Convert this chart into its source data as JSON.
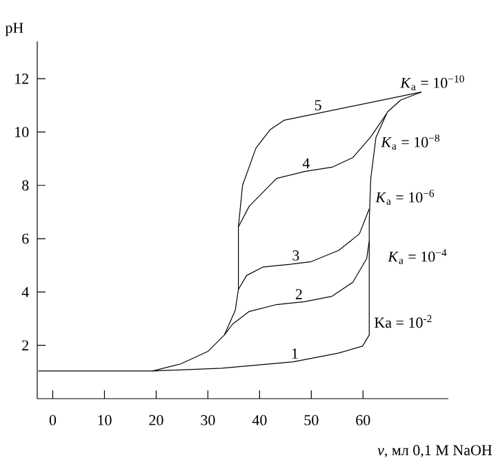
{
  "chart_data": {
    "type": "line",
    "xlabel": "*v*, мл 0,1 M NaOH",
    "ylabel": "pH",
    "xlim": [
      -3,
      76.5
    ],
    "ylim": [
      0,
      13.4
    ],
    "xticks": [
      0,
      10,
      20,
      30,
      40,
      50,
      60
    ],
    "yticks": [
      2,
      4,
      6,
      8,
      10,
      12
    ],
    "grid": false,
    "marker": "none",
    "line_style": "solid",
    "series": [
      {
        "name": "1",
        "color": "#000000",
        "x": [
          19.3,
          32.7,
          46.5,
          55.3,
          59.9,
          61.2,
          61.2,
          61.5,
          62.5,
          64.7,
          67.3,
          71.3
        ],
        "values": [
          1.04,
          1.14,
          1.38,
          1.71,
          1.97,
          2.39,
          6.7,
          8.26,
          9.8,
          10.75,
          11.2,
          11.5
        ]
      },
      {
        "name": "2",
        "color": "#000000",
        "x": [
          -2.8,
          19.3,
          24.7,
          30,
          33.2,
          34.8,
          38,
          43.3,
          48.7,
          54,
          58,
          60.7,
          61.2
        ],
        "values": [
          1.04,
          1.04,
          1.3,
          1.77,
          2.39,
          2.8,
          3.27,
          3.53,
          3.64,
          3.84,
          4.36,
          5.25,
          5.9
        ]
      },
      {
        "name": "3",
        "color": "#000000",
        "x": [
          33.2,
          35.3,
          35.9,
          37.5,
          40.7,
          46,
          50,
          55.3,
          59.3,
          61.2
        ],
        "values": [
          2.39,
          3.32,
          4.1,
          4.62,
          4.94,
          5.04,
          5.14,
          5.56,
          6.18,
          7.12
        ]
      },
      {
        "name": "4",
        "color": "#000000",
        "x": [
          35.9,
          35.9,
          38,
          43.3,
          48.7,
          54,
          58,
          61.5,
          64.6
        ],
        "values": [
          4.1,
          6.44,
          7.22,
          8.26,
          8.52,
          8.68,
          9.04,
          9.82,
          10.7
        ]
      },
      {
        "name": "5",
        "color": "#000000",
        "x": [
          35.9,
          36.7,
          39.3,
          42,
          44.7,
          71.3
        ],
        "values": [
          6.44,
          8.0,
          9.4,
          10.08,
          10.44,
          11.5
        ]
      }
    ],
    "annotations": [
      "*K*$_{a}$ = 10$^{−10}$",
      "*K*$_{a}$ = 10$^{−8}$",
      "*K*$_{a}$ = 10$^{−6}$",
      "*K*$_{a}$ = 10$^{−4}$",
      "Ka = 10$^{-2}$"
    ]
  }
}
